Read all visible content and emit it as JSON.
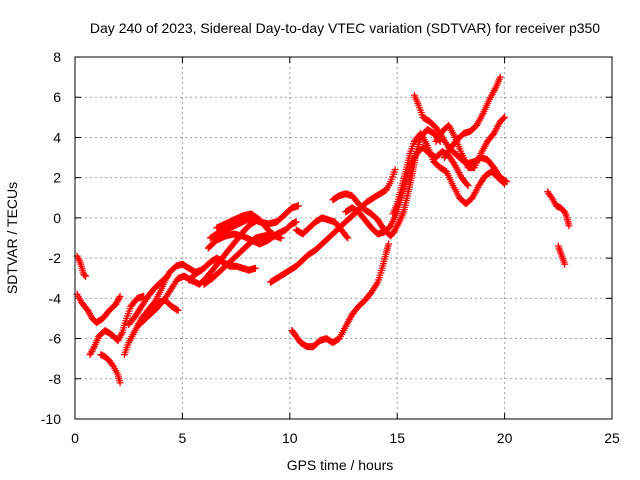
{
  "chart_data": {
    "type": "scatter",
    "title": "Day 240 of 2023, Sidereal Day-to-day VTEC variation (SDTVAR) for receiver p350",
    "xlabel": "GPS time / hours",
    "ylabel": "SDTVAR / TECUs",
    "xlim": [
      0,
      25
    ],
    "ylim": [
      -10,
      8
    ],
    "xticks": [
      0,
      5,
      10,
      15,
      20,
      25
    ],
    "yticks": [
      -10,
      -8,
      -6,
      -4,
      -2,
      0,
      2,
      4,
      6,
      8
    ],
    "grid": true,
    "marker": "+",
    "color": "#ff0000",
    "series": [
      {
        "points": [
          [
            0.1,
            -1.9
          ],
          [
            0.2,
            -2.1
          ],
          [
            0.3,
            -2.4
          ],
          [
            0.4,
            -2.8
          ],
          [
            0.5,
            -2.9
          ]
        ]
      },
      {
        "points": [
          [
            0.1,
            -3.8
          ],
          [
            0.3,
            -4.2
          ],
          [
            0.6,
            -4.6
          ],
          [
            0.8,
            -5.0
          ],
          [
            1.0,
            -5.2
          ],
          [
            1.3,
            -5.0
          ],
          [
            1.6,
            -4.6
          ],
          [
            1.9,
            -4.3
          ],
          [
            2.1,
            -3.9
          ]
        ]
      },
      {
        "points": [
          [
            0.7,
            -6.8
          ],
          [
            0.9,
            -6.4
          ],
          [
            1.1,
            -5.9
          ],
          [
            1.4,
            -5.6
          ],
          [
            1.7,
            -5.8
          ],
          [
            2.0,
            -6.1
          ],
          [
            2.2,
            -5.7
          ],
          [
            2.4,
            -5.0
          ],
          [
            2.6,
            -4.4
          ],
          [
            2.9,
            -4.0
          ],
          [
            3.2,
            -3.9
          ]
        ]
      },
      {
        "points": [
          [
            1.2,
            -6.8
          ],
          [
            1.4,
            -6.9
          ],
          [
            1.6,
            -7.1
          ],
          [
            1.8,
            -7.4
          ],
          [
            2.0,
            -7.8
          ],
          [
            2.1,
            -8.2
          ]
        ]
      },
      {
        "points": [
          [
            2.3,
            -6.8
          ],
          [
            2.5,
            -6.2
          ],
          [
            2.8,
            -5.6
          ],
          [
            3.1,
            -5.0
          ],
          [
            3.4,
            -4.6
          ],
          [
            3.7,
            -4.2
          ],
          [
            4.0,
            -3.6
          ],
          [
            4.2,
            -3.1
          ],
          [
            4.4,
            -2.7
          ],
          [
            4.7,
            -2.4
          ],
          [
            5.0,
            -2.3
          ],
          [
            5.3,
            -2.5
          ],
          [
            5.6,
            -2.7
          ],
          [
            5.9,
            -2.6
          ]
        ]
      },
      {
        "points": [
          [
            2.5,
            -5.3
          ],
          [
            2.8,
            -4.9
          ],
          [
            3.1,
            -4.4
          ],
          [
            3.4,
            -3.9
          ],
          [
            3.7,
            -3.5
          ],
          [
            4.0,
            -3.2
          ],
          [
            4.3,
            -2.9
          ]
        ]
      },
      {
        "points": [
          [
            3.0,
            -5.3
          ],
          [
            3.4,
            -4.9
          ],
          [
            3.8,
            -4.5
          ],
          [
            4.2,
            -4.0
          ],
          [
            4.5,
            -3.5
          ],
          [
            4.8,
            -3.0
          ],
          [
            5.1,
            -2.9
          ],
          [
            5.4,
            -3.1
          ],
          [
            5.8,
            -3.3
          ],
          [
            6.1,
            -3.0
          ],
          [
            6.4,
            -2.6
          ],
          [
            6.7,
            -2.2
          ],
          [
            7.0,
            -1.8
          ],
          [
            7.3,
            -1.4
          ],
          [
            7.6,
            -1.0
          ],
          [
            7.9,
            -0.6
          ],
          [
            8.2,
            -0.3
          ],
          [
            8.5,
            -0.1
          ]
        ]
      },
      {
        "points": [
          [
            3.6,
            -4.6
          ],
          [
            3.9,
            -4.2
          ],
          [
            4.2,
            -4.1
          ],
          [
            4.5,
            -4.4
          ],
          [
            4.8,
            -4.6
          ]
        ]
      },
      {
        "points": [
          [
            5.3,
            -3.1
          ],
          [
            5.6,
            -2.8
          ],
          [
            6.0,
            -2.5
          ],
          [
            6.3,
            -2.2
          ],
          [
            6.6,
            -2.0
          ],
          [
            6.9,
            -2.2
          ],
          [
            7.2,
            -2.4
          ],
          [
            7.5,
            -2.4
          ],
          [
            7.8,
            -2.5
          ],
          [
            8.1,
            -2.6
          ],
          [
            8.4,
            -2.5
          ]
        ]
      },
      {
        "points": [
          [
            6.0,
            -3.3
          ],
          [
            6.4,
            -3.0
          ],
          [
            6.8,
            -2.6
          ],
          [
            7.2,
            -2.2
          ],
          [
            7.6,
            -1.8
          ],
          [
            8.0,
            -1.4
          ],
          [
            8.4,
            -1.0
          ],
          [
            8.8,
            -0.9
          ],
          [
            9.2,
            -0.8
          ]
        ]
      },
      {
        "points": [
          [
            6.3,
            -1.0
          ],
          [
            6.6,
            -0.8
          ],
          [
            7.0,
            -0.6
          ],
          [
            7.4,
            -0.4
          ],
          [
            7.8,
            -0.2
          ],
          [
            8.2,
            0.0
          ],
          [
            8.6,
            -0.2
          ],
          [
            9.0,
            -0.3
          ],
          [
            9.4,
            -0.2
          ],
          [
            9.8,
            0.2
          ],
          [
            10.1,
            0.5
          ],
          [
            10.4,
            0.6
          ]
        ]
      },
      {
        "points": [
          [
            6.2,
            -1.5
          ],
          [
            6.6,
            -1.1
          ],
          [
            7.0,
            -0.9
          ],
          [
            7.4,
            -0.8
          ],
          [
            7.8,
            -0.9
          ],
          [
            8.2,
            -1.1
          ],
          [
            8.6,
            -1.3
          ],
          [
            9.0,
            -1.1
          ],
          [
            9.4,
            -0.8
          ],
          [
            9.8,
            -0.6
          ],
          [
            10.1,
            -0.3
          ],
          [
            10.3,
            -0.2
          ]
        ]
      },
      {
        "points": [
          [
            6.6,
            -0.5
          ],
          [
            7.0,
            -0.3
          ],
          [
            7.4,
            -0.1
          ],
          [
            7.8,
            0.1
          ],
          [
            8.2,
            0.2
          ],
          [
            8.6,
            -0.1
          ],
          [
            9.0,
            -0.6
          ],
          [
            9.3,
            -0.9
          ],
          [
            9.6,
            -1.0
          ]
        ]
      },
      {
        "points": [
          [
            9.1,
            -3.2
          ],
          [
            9.4,
            -3.0
          ],
          [
            9.7,
            -2.8
          ],
          [
            10.0,
            -2.6
          ],
          [
            10.3,
            -2.4
          ],
          [
            10.6,
            -2.1
          ],
          [
            10.9,
            -1.8
          ],
          [
            11.2,
            -1.6
          ],
          [
            11.5,
            -1.3
          ],
          [
            11.8,
            -1.0
          ],
          [
            12.1,
            -0.7
          ],
          [
            12.4,
            -0.4
          ],
          [
            12.7,
            -0.1
          ],
          [
            13.0,
            0.2
          ],
          [
            13.3,
            0.5
          ],
          [
            13.6,
            0.8
          ],
          [
            13.9,
            1.0
          ],
          [
            14.2,
            1.2
          ],
          [
            14.5,
            1.4
          ],
          [
            14.7,
            1.8
          ],
          [
            14.9,
            2.4
          ]
        ]
      },
      {
        "points": [
          [
            10.3,
            -0.6
          ],
          [
            10.6,
            -0.8
          ],
          [
            10.9,
            -0.5
          ],
          [
            11.2,
            -0.2
          ],
          [
            11.5,
            0.0
          ],
          [
            11.8,
            -0.1
          ],
          [
            12.1,
            -0.2
          ],
          [
            12.4,
            -0.6
          ],
          [
            12.7,
            -1.0
          ]
        ]
      },
      {
        "points": [
          [
            10.1,
            -5.6
          ],
          [
            10.3,
            -5.9
          ],
          [
            10.5,
            -6.2
          ],
          [
            10.8,
            -6.4
          ],
          [
            11.1,
            -6.4
          ],
          [
            11.4,
            -6.1
          ],
          [
            11.7,
            -6.0
          ],
          [
            12.0,
            -6.2
          ],
          [
            12.3,
            -6.0
          ],
          [
            12.6,
            -5.4
          ],
          [
            12.9,
            -4.8
          ],
          [
            13.2,
            -4.4
          ],
          [
            13.5,
            -4.1
          ],
          [
            13.8,
            -3.7
          ],
          [
            14.1,
            -3.2
          ],
          [
            14.3,
            -2.5
          ],
          [
            14.5,
            -1.7
          ],
          [
            14.6,
            -1.3
          ]
        ]
      },
      {
        "points": [
          [
            12.0,
            0.9
          ],
          [
            12.3,
            1.1
          ],
          [
            12.6,
            1.2
          ],
          [
            12.9,
            1.1
          ],
          [
            13.2,
            0.7
          ],
          [
            13.5,
            0.4
          ],
          [
            13.8,
            0.2
          ],
          [
            14.1,
            -0.1
          ],
          [
            14.4,
            -0.6
          ],
          [
            14.7,
            -0.9
          ],
          [
            14.9,
            -0.6
          ],
          [
            15.1,
            -0.2
          ],
          [
            15.3,
            0.3
          ],
          [
            15.5,
            1.2
          ],
          [
            15.7,
            2.2
          ],
          [
            15.9,
            3.3
          ],
          [
            16.1,
            4.0
          ],
          [
            16.4,
            4.4
          ],
          [
            16.7,
            4.2
          ],
          [
            17.0,
            3.8
          ]
        ]
      },
      {
        "points": [
          [
            12.6,
            0.3
          ],
          [
            12.9,
            0.5
          ],
          [
            13.2,
            0.3
          ],
          [
            13.5,
            -0.1
          ],
          [
            13.8,
            -0.5
          ],
          [
            14.1,
            -0.8
          ],
          [
            14.4,
            -0.7
          ],
          [
            14.7,
            -0.4
          ],
          [
            15.0,
            0.3
          ],
          [
            15.2,
            1.0
          ],
          [
            15.4,
            1.8
          ],
          [
            15.6,
            2.6
          ],
          [
            15.9,
            3.2
          ],
          [
            16.2,
            3.5
          ],
          [
            16.5,
            3.2
          ],
          [
            16.8,
            3.0
          ],
          [
            17.1,
            3.3
          ],
          [
            17.4,
            3.1
          ],
          [
            17.7,
            2.6
          ],
          [
            18.0,
            2.0
          ],
          [
            18.3,
            1.6
          ]
        ]
      },
      {
        "points": [
          [
            14.8,
            0.2
          ],
          [
            15.0,
            0.7
          ],
          [
            15.2,
            1.5
          ],
          [
            15.4,
            2.3
          ],
          [
            15.6,
            3.2
          ],
          [
            15.8,
            3.8
          ],
          [
            16.1,
            4.2
          ],
          [
            16.4,
            3.6
          ],
          [
            16.7,
            2.8
          ],
          [
            17.0,
            2.5
          ],
          [
            17.3,
            2.3
          ],
          [
            17.6,
            1.6
          ],
          [
            17.9,
            1.0
          ],
          [
            18.2,
            0.7
          ],
          [
            18.5,
            1.0
          ],
          [
            18.8,
            1.6
          ],
          [
            19.1,
            2.1
          ],
          [
            19.4,
            2.3
          ],
          [
            19.7,
            2.0
          ],
          [
            20.0,
            1.7
          ]
        ]
      },
      {
        "points": [
          [
            15.8,
            6.1
          ],
          [
            16.0,
            5.6
          ],
          [
            16.2,
            5.0
          ],
          [
            16.5,
            4.8
          ],
          [
            16.8,
            4.5
          ],
          [
            17.1,
            4.0
          ],
          [
            17.4,
            3.5
          ],
          [
            17.7,
            3.2
          ],
          [
            18.0,
            2.9
          ],
          [
            18.3,
            2.7
          ],
          [
            18.6,
            2.8
          ],
          [
            18.9,
            3.0
          ],
          [
            19.2,
            2.9
          ],
          [
            19.5,
            2.5
          ],
          [
            19.8,
            2.0
          ],
          [
            20.1,
            1.8
          ]
        ]
      },
      {
        "points": [
          [
            16.8,
            3.8
          ],
          [
            17.1,
            4.3
          ],
          [
            17.4,
            4.6
          ],
          [
            17.7,
            4.0
          ],
          [
            18.0,
            3.2
          ],
          [
            18.3,
            2.5
          ],
          [
            18.6,
            2.5
          ],
          [
            18.9,
            3.2
          ],
          [
            19.2,
            3.8
          ],
          [
            19.5,
            4.2
          ],
          [
            19.8,
            4.8
          ],
          [
            20.0,
            5.0
          ]
        ]
      },
      {
        "points": [
          [
            17.2,
            3.0
          ],
          [
            17.5,
            3.5
          ],
          [
            17.8,
            3.9
          ],
          [
            18.1,
            4.2
          ],
          [
            18.4,
            4.3
          ],
          [
            18.7,
            4.6
          ],
          [
            19.0,
            5.2
          ],
          [
            19.3,
            5.9
          ],
          [
            19.6,
            6.5
          ],
          [
            19.8,
            7.0
          ]
        ]
      },
      {
        "points": [
          [
            22.0,
            1.3
          ],
          [
            22.2,
            1.0
          ],
          [
            22.4,
            0.6
          ],
          [
            22.6,
            0.5
          ],
          [
            22.8,
            0.3
          ],
          [
            22.9,
            0.0
          ],
          [
            23.0,
            -0.4
          ]
        ]
      },
      {
        "points": [
          [
            22.5,
            -1.4
          ],
          [
            22.6,
            -1.7
          ],
          [
            22.7,
            -2.0
          ],
          [
            22.8,
            -2.3
          ]
        ]
      }
    ]
  }
}
